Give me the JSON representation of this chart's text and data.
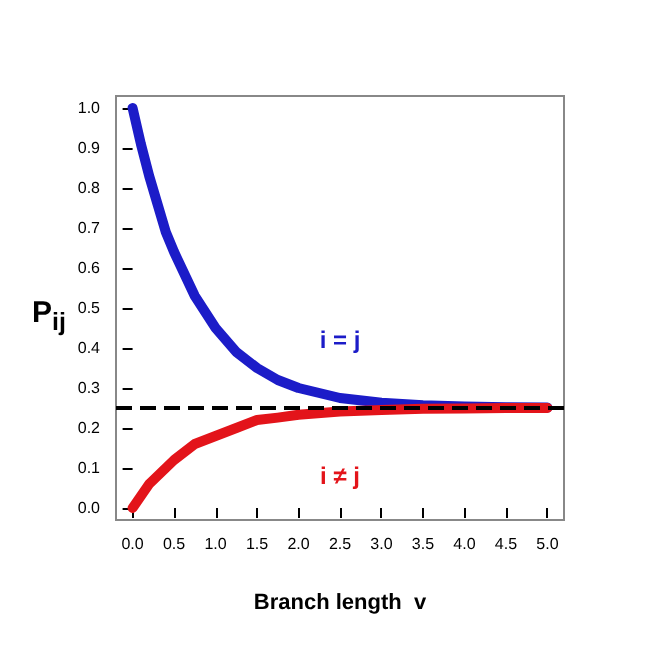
{
  "chart_data": {
    "type": "line",
    "xlabel": "Branch length  v",
    "ylabel": "P$_{ij}$",
    "x": [
      0,
      0.1,
      0.2,
      0.3,
      0.4,
      0.5,
      0.75,
      1.0,
      1.25,
      1.5,
      1.75,
      2.0,
      2.5,
      3.0,
      3.5,
      4.0,
      4.5,
      5.0
    ],
    "series": [
      {
        "color": "#1c1cc8",
        "values": [
          1.0,
          0.91,
          0.83,
          0.76,
          0.69,
          0.64,
          0.53,
          0.45,
          0.39,
          0.35,
          0.32,
          0.3,
          0.275,
          0.263,
          0.257,
          0.254,
          0.252,
          0.251
        ]
      },
      {
        "color": "#e3141a",
        "values": [
          0.0,
          0.03,
          0.06,
          0.08,
          0.1,
          0.12,
          0.16,
          0.18,
          0.2,
          0.22,
          0.226,
          0.233,
          0.241,
          0.245,
          0.248,
          0.249,
          0.25,
          0.25
        ]
      }
    ],
    "xlim": [
      -0.2,
      5.2
    ],
    "ylim": [
      -0.03,
      1.03
    ],
    "xticks": [
      {
        "value": 0,
        "label": "0.0"
      },
      0.5,
      {
        "value": 1,
        "label": "1.0"
      },
      1.5,
      {
        "value": 2,
        "label": "2.0"
      },
      2.5,
      {
        "value": 3,
        "label": "3.0"
      },
      3.5,
      {
        "value": 4,
        "label": "4.0"
      },
      4.5,
      {
        "value": 5,
        "label": "5.0"
      }
    ],
    "yticks": [
      {
        "value": 0,
        "label": "0.0"
      },
      0.1,
      0.2,
      0.3,
      0.4,
      0.5,
      0.6,
      0.7,
      0.8,
      0.9,
      {
        "value": 1,
        "label": "1.0"
      }
    ],
    "ref_lines": [
      {
        "axis": "y",
        "value": 0.25,
        "color": "#000000",
        "line_style": "dashed"
      }
    ],
    "annotations": [
      "i = j",
      "i ≠ j"
    ],
    "grid": false,
    "marker": "none",
    "line_style": "solid"
  }
}
